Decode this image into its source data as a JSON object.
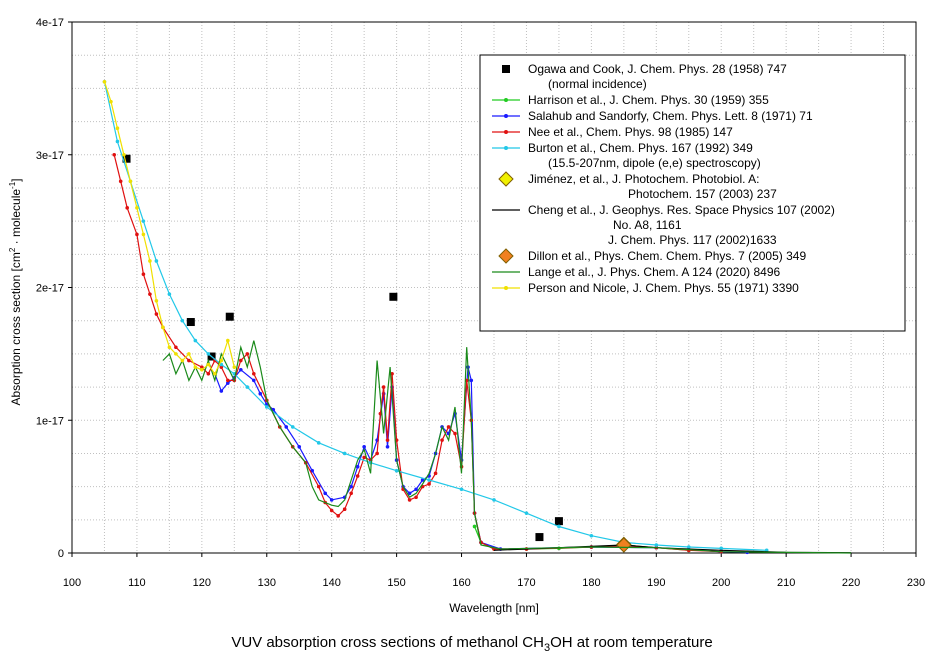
{
  "chart_data": {
    "type": "line",
    "caption_pre": "VUV absorption cross sections of methanol CH",
    "caption_sub": "3",
    "caption_post": "OH at room temperature",
    "xlabel": "Wavelength [nm]",
    "ylabel_pre": "Absorption cross section [cm",
    "ylabel_sup1": "2",
    "ylabel_mid": " molecule",
    "ylabel_sup2": "-1",
    "ylabel_post": "]",
    "xlim": [
      100,
      230
    ],
    "ylim": [
      0,
      4e-17
    ],
    "xticks": [
      "100",
      "110",
      "120",
      "130",
      "140",
      "150",
      "160",
      "170",
      "180",
      "190",
      "200",
      "210",
      "220",
      "230"
    ],
    "yticks": [
      "0",
      "1e-17",
      "2e-17",
      "3e-17",
      "4e-17"
    ],
    "grid": true,
    "legend_position": "top-right",
    "series": [
      {
        "name": "Ogawa and Cook, J. Chem. Phys. 28 (1958) 747",
        "name2": "(normal incidence)",
        "color": "#000000",
        "marker": "square",
        "line": false,
        "points": [
          [
            108.4,
            2.97e-17
          ],
          [
            118.3,
            1.74e-17
          ],
          [
            121.5,
            1.48e-17
          ],
          [
            124.3,
            1.78e-17
          ],
          [
            149.5,
            1.93e-17
          ],
          [
            172,
            1.2e-18
          ],
          [
            175,
            2.4e-18
          ]
        ]
      },
      {
        "name": "Harrison et al., J. Chem. Phys. 30 (1959) 355",
        "color": "#22cc22",
        "marker": "dot",
        "line": true,
        "points": [
          [
            162,
            2e-18
          ],
          [
            163,
            8e-19
          ],
          [
            165,
            3e-19
          ],
          [
            170,
            3e-19
          ],
          [
            175,
            3.5e-19
          ],
          [
            180,
            4.5e-19
          ],
          [
            185,
            6e-19
          ],
          [
            190,
            4e-19
          ],
          [
            195,
            2e-19
          ]
        ]
      },
      {
        "name": "Salahub and Sandorfy, Chem. Phys. Lett. 8 (1971) 71",
        "color": "#1a1aff",
        "marker": "dot",
        "line": true,
        "points": [
          [
            122,
            1.35e-17
          ],
          [
            123,
            1.22e-17
          ],
          [
            124,
            1.28e-17
          ],
          [
            125,
            1.32e-17
          ],
          [
            126,
            1.38e-17
          ],
          [
            128,
            1.3e-17
          ],
          [
            129,
            1.2e-17
          ],
          [
            130,
            1.12e-17
          ],
          [
            131,
            1.08e-17
          ],
          [
            133,
            9.5e-18
          ],
          [
            135,
            8e-18
          ],
          [
            137,
            6.2e-18
          ],
          [
            139,
            4.5e-18
          ],
          [
            140,
            4e-18
          ],
          [
            142,
            4.2e-18
          ],
          [
            143,
            5e-18
          ],
          [
            144,
            6.5e-18
          ],
          [
            145,
            8e-18
          ],
          [
            146,
            7e-18
          ],
          [
            147,
            8.5e-18
          ],
          [
            148,
            1.2e-17
          ],
          [
            148.6,
            8e-18
          ],
          [
            149.3,
            1.25e-17
          ],
          [
            150,
            7e-18
          ],
          [
            151,
            5e-18
          ],
          [
            152,
            4.5e-18
          ],
          [
            153,
            4.8e-18
          ],
          [
            154,
            5.5e-18
          ],
          [
            155,
            5.8e-18
          ],
          [
            156,
            7.5e-18
          ],
          [
            157,
            9.5e-18
          ],
          [
            158,
            9e-18
          ],
          [
            159,
            1.05e-17
          ],
          [
            160,
            7e-18
          ],
          [
            161,
            1.4e-17
          ],
          [
            161.5,
            1.3e-17
          ],
          [
            162,
            3e-18
          ],
          [
            163,
            8e-19
          ],
          [
            166,
            3e-19
          ],
          [
            180,
            4.5e-19
          ],
          [
            190,
            4e-19
          ],
          [
            200,
            1e-19
          ],
          [
            204,
            5e-20
          ]
        ]
      },
      {
        "name": "Nee et al., Chem. Phys. 98 (1985) 147",
        "color": "#e01010",
        "marker": "dot",
        "line": true,
        "points": [
          [
            106.5,
            3e-17
          ],
          [
            107.5,
            2.8e-17
          ],
          [
            108.5,
            2.6e-17
          ],
          [
            110,
            2.4e-17
          ],
          [
            111,
            2.1e-17
          ],
          [
            112,
            1.95e-17
          ],
          [
            113,
            1.8e-17
          ],
          [
            114,
            1.7e-17
          ],
          [
            116,
            1.55e-17
          ],
          [
            118,
            1.45e-17
          ],
          [
            120,
            1.4e-17
          ],
          [
            121,
            1.35e-17
          ],
          [
            122,
            1.45e-17
          ],
          [
            123,
            1.4e-17
          ],
          [
            124,
            1.3e-17
          ],
          [
            125,
            1.3e-17
          ],
          [
            126,
            1.45e-17
          ],
          [
            127,
            1.5e-17
          ],
          [
            128,
            1.35e-17
          ],
          [
            130,
            1.15e-17
          ],
          [
            132,
            9.5e-18
          ],
          [
            134,
            8e-18
          ],
          [
            136,
            6.8e-18
          ],
          [
            138,
            5e-18
          ],
          [
            139,
            3.8e-18
          ],
          [
            140,
            3.2e-18
          ],
          [
            141,
            2.8e-18
          ],
          [
            142,
            3.3e-18
          ],
          [
            143,
            4.5e-18
          ],
          [
            144,
            5.8e-18
          ],
          [
            145,
            7.2e-18
          ],
          [
            146,
            7e-18
          ],
          [
            147,
            7.5e-18
          ],
          [
            147.5,
            1.05e-17
          ],
          [
            148,
            1.25e-17
          ],
          [
            148.6,
            8.5e-18
          ],
          [
            149.3,
            1.35e-17
          ],
          [
            150,
            8.5e-18
          ],
          [
            151,
            4.8e-18
          ],
          [
            152,
            4e-18
          ],
          [
            153,
            4.2e-18
          ],
          [
            154,
            5e-18
          ],
          [
            155,
            5.2e-18
          ],
          [
            156,
            6e-18
          ],
          [
            157,
            8.5e-18
          ],
          [
            158,
            9.5e-18
          ],
          [
            159,
            9e-18
          ],
          [
            160,
            6.5e-18
          ],
          [
            160.8,
            1.3e-17
          ],
          [
            161.5,
            1e-17
          ],
          [
            162,
            3e-18
          ],
          [
            163,
            8e-19
          ],
          [
            165,
            3e-19
          ],
          [
            170,
            3e-19
          ],
          [
            180,
            4.5e-19
          ],
          [
            185,
            5.5e-19
          ],
          [
            190,
            4e-19
          ],
          [
            195,
            2e-19
          ],
          [
            200,
            1e-19
          ]
        ]
      },
      {
        "name": "Burton et al.,  Chem. Phys. 167 (1992) 349",
        "name2": "(15.5-207nm, dipole (e,e) spectroscopy)",
        "color": "#22c8e8",
        "marker": "dot",
        "line": true,
        "points": [
          [
            105,
            3.55e-17
          ],
          [
            107,
            3.1e-17
          ],
          [
            109,
            2.8e-17
          ],
          [
            111,
            2.5e-17
          ],
          [
            113,
            2.2e-17
          ],
          [
            115,
            1.95e-17
          ],
          [
            117,
            1.75e-17
          ],
          [
            119,
            1.6e-17
          ],
          [
            121,
            1.5e-17
          ],
          [
            123,
            1.42e-17
          ],
          [
            125,
            1.35e-17
          ],
          [
            127,
            1.25e-17
          ],
          [
            130,
            1.1e-17
          ],
          [
            134,
            9.5e-18
          ],
          [
            138,
            8.3e-18
          ],
          [
            142,
            7.5e-18
          ],
          [
            146,
            6.8e-18
          ],
          [
            150,
            6.2e-18
          ],
          [
            155,
            5.5e-18
          ],
          [
            160,
            4.8e-18
          ],
          [
            165,
            4e-18
          ],
          [
            170,
            3e-18
          ],
          [
            175,
            2e-18
          ],
          [
            180,
            1.3e-18
          ],
          [
            185,
            8e-19
          ],
          [
            190,
            6e-19
          ],
          [
            195,
            4.5e-19
          ],
          [
            200,
            3.5e-19
          ],
          [
            207,
            2e-19
          ]
        ]
      },
      {
        "name": "Jiménez, et al., J. Photochem. Photobiol. A:",
        "name2": "Photochem. 157 (2003) 237",
        "color": "#f0f000",
        "marker": "diamond",
        "line": false,
        "points": [
          [
            185,
            6.5e-19
          ]
        ]
      },
      {
        "name": "Cheng et al., J. Geophys. Res. Space Physics 107 (2002)",
        "name2": "No. A8, 1161",
        "name3": "J. Chem. Phys. 117 (2002)1633",
        "color": "#000000",
        "marker": "none",
        "line": true,
        "points": [
          [
            165,
            2e-19
          ],
          [
            170,
            3e-19
          ],
          [
            175,
            4e-19
          ],
          [
            180,
            5e-19
          ],
          [
            185,
            6e-19
          ],
          [
            190,
            4e-19
          ],
          [
            200,
            2e-19
          ],
          [
            210,
            5e-20
          ],
          [
            220,
            2e-20
          ]
        ]
      },
      {
        "name": "Dillon et al., Phys. Chem. Chem. Phys. 7 (2005) 349",
        "color": "#f08020",
        "marker": "diamond",
        "line": false,
        "points": [
          [
            185,
            6e-19
          ]
        ]
      },
      {
        "name": "Lange et al., J. Phys. Chem. A 124 (2020) 8496",
        "color": "#1a8a1a",
        "marker": "none",
        "line": true,
        "points": [
          [
            114,
            1.45e-17
          ],
          [
            115,
            1.5e-17
          ],
          [
            116,
            1.35e-17
          ],
          [
            117,
            1.45e-17
          ],
          [
            118,
            1.3e-17
          ],
          [
            119,
            1.4e-17
          ],
          [
            120,
            1.3e-17
          ],
          [
            121,
            1.45e-17
          ],
          [
            122,
            1.3e-17
          ],
          [
            123,
            1.5e-17
          ],
          [
            124,
            1.4e-17
          ],
          [
            125,
            1.3e-17
          ],
          [
            126,
            1.55e-17
          ],
          [
            127,
            1.4e-17
          ],
          [
            128,
            1.6e-17
          ],
          [
            129,
            1.4e-17
          ],
          [
            130,
            1.15e-17
          ],
          [
            132,
            9.5e-18
          ],
          [
            134,
            8e-18
          ],
          [
            136,
            6.8e-18
          ],
          [
            137,
            5e-18
          ],
          [
            138,
            4e-18
          ],
          [
            139,
            3.8e-18
          ],
          [
            140,
            3.6e-18
          ],
          [
            141,
            3.5e-18
          ],
          [
            142,
            4e-18
          ],
          [
            143,
            5.5e-18
          ],
          [
            144,
            7e-18
          ],
          [
            145,
            7.8e-18
          ],
          [
            146,
            6e-18
          ],
          [
            147,
            1.45e-17
          ],
          [
            148,
            9e-18
          ],
          [
            149,
            1.4e-17
          ],
          [
            150,
            7e-18
          ],
          [
            151,
            5e-18
          ],
          [
            152,
            4.2e-18
          ],
          [
            153,
            4.5e-18
          ],
          [
            154,
            5.2e-18
          ],
          [
            155,
            6e-18
          ],
          [
            156,
            7.5e-18
          ],
          [
            157,
            9.5e-18
          ],
          [
            158,
            8.5e-18
          ],
          [
            159,
            1.1e-17
          ],
          [
            160,
            6e-18
          ],
          [
            160.8,
            1.55e-17
          ],
          [
            161.5,
            1e-17
          ],
          [
            162,
            3e-18
          ],
          [
            163,
            6e-19
          ],
          [
            166,
            3e-19
          ],
          [
            180,
            4.5e-19
          ],
          [
            190,
            4e-19
          ],
          [
            200,
            1e-19
          ],
          [
            220,
            0.0
          ]
        ]
      },
      {
        "name": "Person and Nicole, J. Chem. Phys. 55 (1971) 3390",
        "color": "#f0e000",
        "marker": "dot",
        "line": true,
        "points": [
          [
            105,
            3.55e-17
          ],
          [
            106,
            3.4e-17
          ],
          [
            107,
            3.2e-17
          ],
          [
            108,
            3e-17
          ],
          [
            109,
            2.8e-17
          ],
          [
            110,
            2.6e-17
          ],
          [
            111,
            2.4e-17
          ],
          [
            112,
            2.2e-17
          ],
          [
            113,
            1.9e-17
          ],
          [
            114,
            1.7e-17
          ],
          [
            115,
            1.55e-17
          ],
          [
            116,
            1.5e-17
          ],
          [
            117,
            1.45e-17
          ],
          [
            118,
            1.5e-17
          ],
          [
            119,
            1.4e-17
          ],
          [
            120,
            1.38e-17
          ],
          [
            121,
            1.42e-17
          ],
          [
            122,
            1.35e-17
          ],
          [
            123,
            1.45e-17
          ],
          [
            124,
            1.6e-17
          ],
          [
            125,
            1.4e-17
          ]
        ]
      }
    ]
  }
}
